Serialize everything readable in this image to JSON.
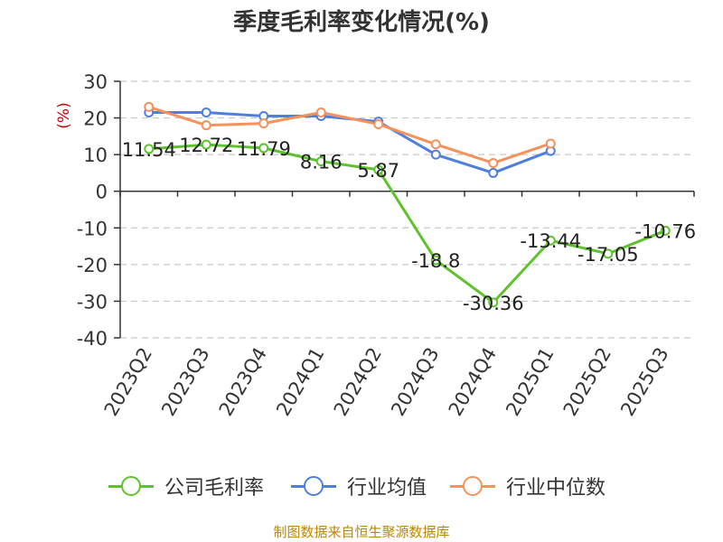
{
  "title": "季度毛利率变化情况(%)",
  "source": "制图数据来自恒生聚源数据库",
  "chart_data": {
    "type": "line",
    "ylabel": "(%)",
    "categories": [
      "2023Q2",
      "2023Q3",
      "2023Q4",
      "2024Q1",
      "2024Q2",
      "2024Q3",
      "2024Q4",
      "2025Q1",
      "2025Q2",
      "2025Q3"
    ],
    "ylim": [
      -40,
      30
    ],
    "yticks": [
      30,
      20,
      10,
      0,
      -10,
      -20,
      -30,
      -40
    ],
    "ytick_labels": [
      "30",
      "20",
      "10",
      "0",
      "-10",
      "-20",
      "-30",
      "-40"
    ],
    "grid": true,
    "legend_position": "bottom",
    "series": [
      {
        "name": "公司毛利率",
        "color": "#5ec22d",
        "values": [
          11.54,
          12.72,
          11.79,
          8.16,
          5.87,
          -18.8,
          -30.36,
          -13.44,
          -17.05,
          -10.76
        ],
        "labels": [
          "11.54",
          "12.72",
          "11.79",
          "8.16",
          "5.87",
          "-18.8",
          "-30.36",
          "-13.44",
          "-17.05",
          "-10.76"
        ]
      },
      {
        "name": "行业均值",
        "color": "#4f7fdc",
        "values": [
          21.5,
          21.5,
          20.5,
          20.5,
          19,
          10,
          5,
          11,
          null,
          null
        ]
      },
      {
        "name": "行业中位数",
        "color": "#f5925c",
        "values": [
          23,
          18,
          18.5,
          21.5,
          18.3,
          12.8,
          7.7,
          13,
          null,
          null
        ]
      }
    ]
  }
}
